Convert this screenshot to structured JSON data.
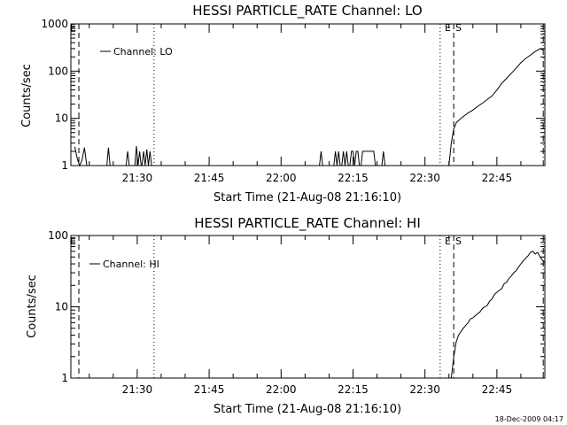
{
  "footer": {
    "timestamp": "18-Dec-2009 04:17"
  },
  "chart_data": [
    {
      "type": "line",
      "title": "HESSI PARTICLE_RATE Channel: LO",
      "xlabel": "Start Time (21-Aug-08 21:16:10)",
      "ylabel": "Counts/sec",
      "yscale": "log",
      "ylim": [
        1,
        1000
      ],
      "xlim": [
        "21:16:10",
        "22:55:00"
      ],
      "grid": false,
      "legend_position": "top-left",
      "x_ticks": [
        "21:30",
        "21:45",
        "22:00",
        "22:15",
        "22:30",
        "22:45"
      ],
      "y_ticks": [
        "1",
        "10",
        "100",
        "1000"
      ],
      "flags": [
        "E",
        "S"
      ],
      "series": [
        {
          "name": "Channel: LO",
          "segments": [
            {
              "x": [
                "21:17:00",
                "21:17:30",
                "21:18:00",
                "21:18:30",
                "21:19:00",
                "21:19:30"
              ],
              "y": [
                2.5,
                1.4,
                1,
                1.3,
                2.4,
                1
              ]
            },
            {
              "x": [
                "21:23:40",
                "21:24:00",
                "21:24:20"
              ],
              "y": [
                1,
                2.4,
                1
              ]
            },
            {
              "x": [
                "21:27:40",
                "21:28:00",
                "21:28:20"
              ],
              "y": [
                1,
                2,
                1
              ]
            },
            {
              "x": [
                "21:29:30",
                "21:29:50",
                "21:30:10",
                "21:30:30",
                "21:30:50"
              ],
              "y": [
                1,
                2.6,
                1,
                2,
                1
              ]
            },
            {
              "x": [
                "21:31:00",
                "21:31:20",
                "21:31:40",
                "21:32:00",
                "21:32:20",
                "21:32:40",
                "21:33:00"
              ],
              "y": [
                1,
                2,
                1,
                2.2,
                1,
                2,
                1
              ]
            },
            {
              "x": [
                "22:08:00",
                "22:08:20",
                "22:08:40"
              ],
              "y": [
                1,
                2,
                1
              ]
            },
            {
              "x": [
                "22:11:00",
                "22:11:20",
                "22:11:40",
                "22:12:00",
                "22:12:20"
              ],
              "y": [
                1,
                2,
                1,
                2,
                1
              ]
            },
            {
              "x": [
                "22:12:40",
                "22:13:00",
                "22:13:20",
                "22:13:40",
                "22:14:00"
              ],
              "y": [
                1,
                2,
                1,
                2,
                1
              ]
            },
            {
              "x": [
                "22:14:20",
                "22:14:40",
                "22:15:00",
                "22:15:20",
                "22:15:40",
                "22:16:00",
                "22:16:20"
              ],
              "y": [
                1,
                2,
                2,
                1,
                2,
                2,
                1
              ]
            },
            {
              "x": [
                "22:16:40",
                "22:17:00",
                "22:19:20",
                "22:19:40"
              ],
              "y": [
                1,
                2,
                2,
                1
              ]
            },
            {
              "x": [
                "22:21:00",
                "22:21:20",
                "22:21:40"
              ],
              "y": [
                1,
                2,
                1
              ]
            },
            {
              "x": [
                "22:35:00",
                "22:35:30",
                "22:36:00",
                "22:36:30",
                "22:37:00",
                "22:38:00",
                "22:39:00",
                "22:40:00",
                "22:41:00",
                "22:42:00",
                "22:43:00",
                "22:44:00",
                "22:45:00",
                "22:46:00",
                "22:47:00",
                "22:48:00",
                "22:49:00",
                "22:50:00",
                "22:51:00",
                "22:52:00",
                "22:53:00",
                "22:54:00",
                "22:54:40"
              ],
              "y": [
                1,
                3,
                6,
                8,
                9,
                11,
                13,
                15,
                18,
                21,
                25,
                30,
                40,
                55,
                70,
                90,
                115,
                150,
                185,
                220,
                260,
                300,
                280
              ]
            }
          ]
        }
      ]
    },
    {
      "type": "line",
      "title": "HESSI PARTICLE_RATE Channel: HI",
      "xlabel": "Start Time (21-Aug-08 21:16:10)",
      "ylabel": "Counts/sec",
      "yscale": "log",
      "ylim": [
        1,
        100
      ],
      "xlim": [
        "21:16:10",
        "22:55:00"
      ],
      "grid": false,
      "legend_position": "top-left",
      "x_ticks": [
        "21:30",
        "21:45",
        "22:00",
        "22:15",
        "22:30",
        "22:45"
      ],
      "y_ticks": [
        "1",
        "10",
        "100"
      ],
      "flags": [
        "E",
        "S"
      ],
      "series": [
        {
          "name": "Channel: HI",
          "segments": [
            {
              "x": [
                "22:35:30",
                "22:36:00",
                "22:36:30",
                "22:37:00",
                "22:37:30",
                "22:38:00",
                "22:38:30",
                "22:39:00",
                "22:39:30",
                "22:40:00",
                "22:40:30",
                "22:41:00",
                "22:41:30",
                "22:42:00",
                "22:42:30",
                "22:43:00",
                "22:43:30",
                "22:44:00",
                "22:44:30",
                "22:45:00",
                "22:45:30",
                "22:46:00",
                "22:46:30",
                "22:47:00",
                "22:47:30",
                "22:48:00",
                "22:48:30",
                "22:49:00",
                "22:49:30",
                "22:50:00",
                "22:50:30",
                "22:51:00",
                "22:51:30",
                "22:52:00",
                "22:52:30",
                "22:53:00",
                "22:53:30",
                "22:54:00",
                "22:54:30",
                "22:55:00"
              ],
              "y": [
                1,
                2,
                3.2,
                4,
                4.5,
                5,
                5.5,
                6,
                6.8,
                7,
                7.5,
                8,
                8.5,
                9.5,
                10,
                10.5,
                12,
                13,
                15,
                16,
                17,
                18,
                21,
                22,
                25,
                27,
                30,
                32,
                36,
                40,
                44,
                48,
                52,
                58,
                60,
                55,
                58,
                50,
                45,
                42
              ]
            }
          ]
        }
      ]
    }
  ]
}
